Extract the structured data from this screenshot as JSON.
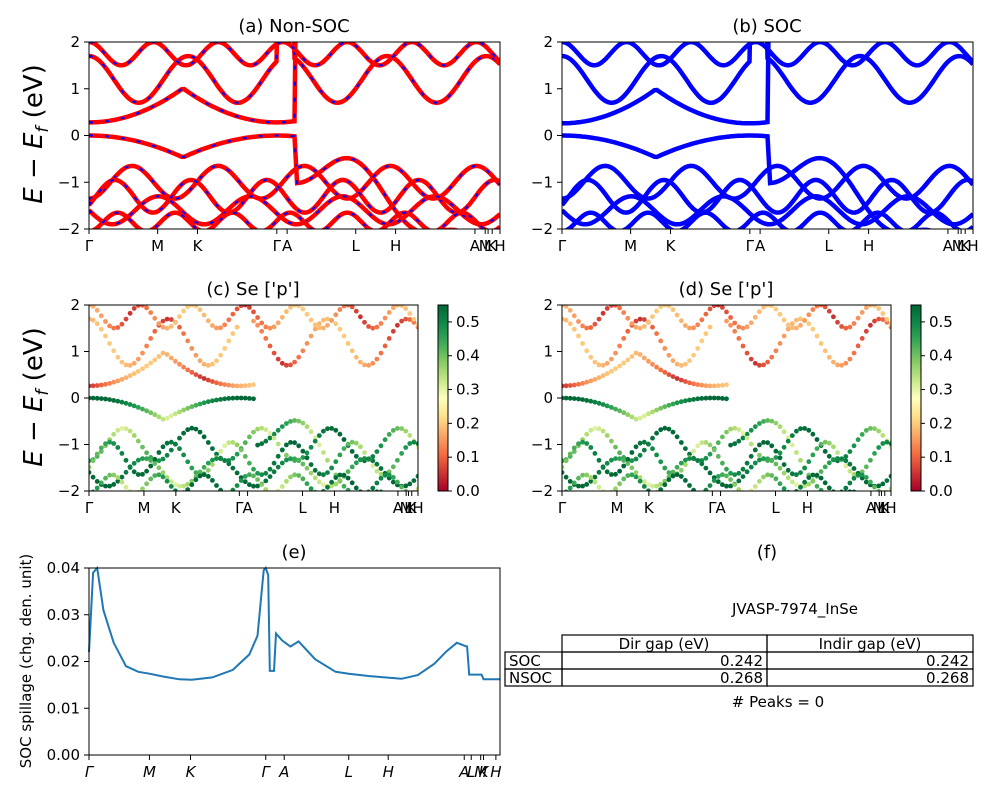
{
  "figure": {
    "panel_a_title": "(a) Non-SOC",
    "panel_b_title": "(b) SOC",
    "panel_c_title": "(c)  Se ['p']",
    "panel_d_title": "(d) Se ['p']",
    "panel_e_title": "(e)",
    "panel_f_title": "(f)",
    "band_ylabel": "E − E",
    "band_ylabel_sub": "f",
    "band_ylabel_unit": " (eV)",
    "spillage_ylabel": "SOC spillage (chg. den. unit)"
  },
  "table_panel": {
    "material": "JVASP-7974_InSe",
    "headers": [
      "Dir gap (eV)",
      "Indir gap (eV)"
    ],
    "rows": [
      {
        "label": "SOC",
        "dir": "0.242",
        "indir": "0.242"
      },
      {
        "label": "NSOC",
        "dir": "0.268",
        "indir": "0.268"
      }
    ],
    "peaks": "# Peaks = 0"
  },
  "chart_data": [
    {
      "panel": "a",
      "type": "line",
      "title": "(a) Non-SOC",
      "ylabel": "E − E_f (eV)",
      "ylim": [
        -2,
        2
      ],
      "yticks": [
        -2,
        -1,
        0,
        1,
        2
      ],
      "kpath": [
        "Γ",
        "M",
        "K",
        "Γ",
        "A",
        "L",
        "H",
        "A",
        "M",
        "L",
        "K",
        "H"
      ],
      "kpos": [
        0,
        0.167,
        0.264,
        0.457,
        0.482,
        0.649,
        0.746,
        0.939,
        0.964,
        0.971,
        0.981,
        1.0
      ],
      "series_colors": [
        "#ff0000",
        "#0000ff"
      ],
      "series": [
        {
          "values_x": [
            0,
            0.04,
            0.1,
            0.167,
            0.22,
            0.264,
            0.33,
            0.4,
            0.457
          ],
          "values": [
            0.28,
            0.9,
            1.6,
            1.1,
            1.6,
            2.0,
            1.8,
            0.9,
            0.28
          ]
        },
        {
          "values_x": [
            0,
            0.05,
            0.12,
            0.167,
            0.22,
            0.264,
            0.33,
            0.4,
            0.457
          ],
          "values": [
            0.0,
            -0.2,
            -1.0,
            -1.8,
            -1.8,
            -1.9,
            -1.0,
            -0.2,
            0.0
          ]
        },
        {
          "values_x": [
            0.482,
            0.56,
            0.649,
            0.7,
            0.746,
            0.82,
            0.9,
            0.939,
            1.0
          ],
          "values": [
            -1.1,
            -1.2,
            -1.7,
            -1.5,
            -1.5,
            -0.9,
            -0.5,
            -1.0,
            -1.4
          ]
        }
      ]
    },
    {
      "panel": "e",
      "type": "line",
      "title": "(e)",
      "ylabel": "SOC spillage (chg. den. unit)",
      "ylim": [
        0.0,
        0.04
      ],
      "yticks": [
        0.0,
        0.01,
        0.02,
        0.03,
        0.04
      ],
      "kpath": [
        "Γ",
        "M",
        "K",
        "Γ",
        "A",
        "L",
        "H",
        "A",
        "L",
        "M",
        "K",
        "H"
      ],
      "kpos": [
        0,
        0.147,
        0.247,
        0.43,
        0.475,
        0.632,
        0.728,
        0.913,
        0.93,
        0.953,
        0.96,
        0.99
      ],
      "x": [
        0,
        0.01,
        0.02,
        0.035,
        0.06,
        0.09,
        0.12,
        0.147,
        0.18,
        0.22,
        0.25,
        0.3,
        0.35,
        0.39,
        0.41,
        0.425,
        0.43,
        0.436,
        0.44,
        0.45,
        0.455,
        0.47,
        0.49,
        0.51,
        0.55,
        0.6,
        0.632,
        0.68,
        0.72,
        0.76,
        0.8,
        0.84,
        0.87,
        0.895,
        0.913,
        0.92,
        0.925,
        0.94,
        0.955,
        0.96,
        0.99,
        1.0
      ],
      "values": [
        0.022,
        0.039,
        0.04,
        0.031,
        0.024,
        0.019,
        0.0178,
        0.0174,
        0.0168,
        0.0162,
        0.0161,
        0.0166,
        0.0182,
        0.0215,
        0.0255,
        0.0395,
        0.04,
        0.0385,
        0.018,
        0.018,
        0.026,
        0.0245,
        0.0232,
        0.0243,
        0.0205,
        0.0178,
        0.0174,
        0.0169,
        0.0166,
        0.0163,
        0.0171,
        0.0195,
        0.0222,
        0.024,
        0.0234,
        0.0232,
        0.0172,
        0.0172,
        0.0172,
        0.0162,
        0.0162,
        0.0162
      ]
    },
    {
      "panel": "c_d",
      "type": "scatter",
      "colorbar_ticks": [
        "0.0",
        "0.1",
        "0.2",
        "0.3",
        "0.4",
        "0.5"
      ],
      "colorbar_range": [
        0.0,
        0.55
      ],
      "colormap": "RdYlGn"
    }
  ]
}
